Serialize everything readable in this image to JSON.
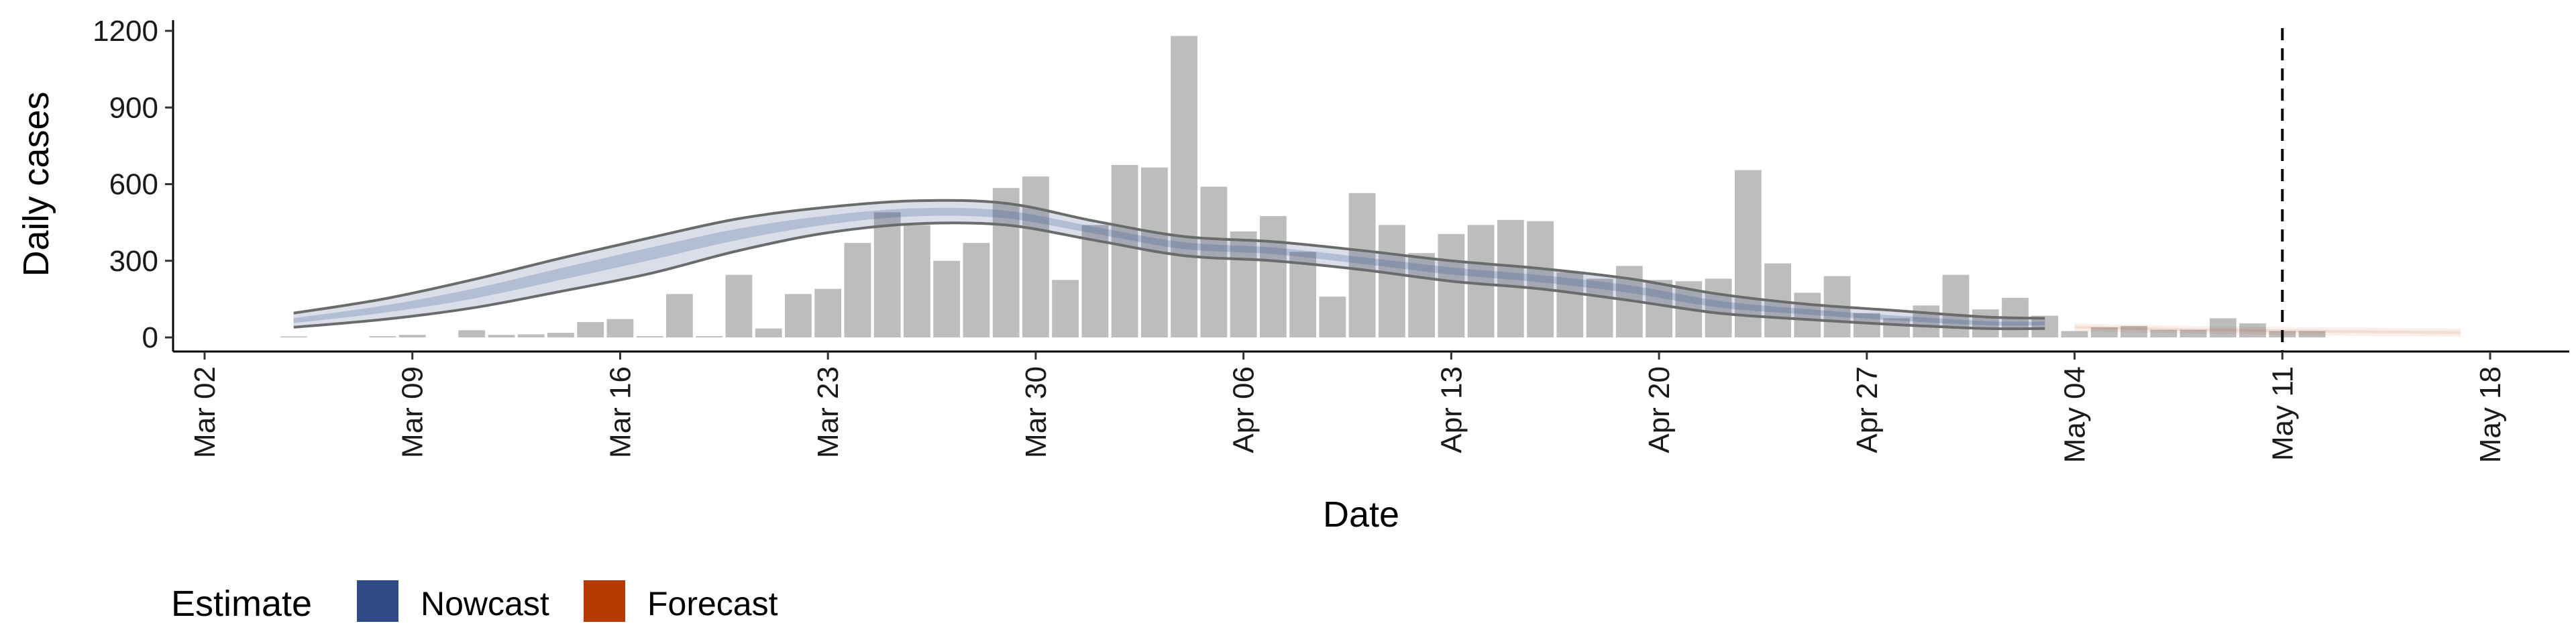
{
  "chart_data": {
    "type": "bar",
    "xlabel": "Date",
    "ylabel": "Daily cases",
    "ylim": [
      0,
      1200
    ],
    "yticks": [
      0,
      300,
      600,
      900,
      1200
    ],
    "xticks": [
      "Mar 02",
      "Mar 09",
      "Mar 16",
      "Mar 23",
      "Mar 30",
      "Apr 06",
      "Apr 13",
      "Apr 20",
      "Apr 27",
      "May 04",
      "May 11",
      "May 18"
    ],
    "x_range": [
      "2020-02-29",
      "2020-05-20"
    ],
    "grid": false,
    "reference_line": {
      "date": "2020-05-11",
      "style": "dashed"
    },
    "bars": {
      "start_date": "2020-03-05",
      "values": [
        2,
        0,
        0,
        5,
        10,
        0,
        28,
        10,
        12,
        18,
        60,
        72,
        5,
        170,
        5,
        245,
        35,
        170,
        190,
        370,
        490,
        440,
        300,
        370,
        585,
        630,
        225,
        440,
        675,
        665,
        1180,
        590,
        415,
        475,
        335,
        160,
        565,
        440,
        330,
        405,
        440,
        460,
        455,
        255,
        230,
        280,
        225,
        220,
        230,
        655,
        290,
        175,
        240,
        95,
        75,
        125,
        245,
        110,
        155,
        85,
        25,
        40,
        45,
        30,
        30,
        75,
        55,
        25,
        25
      ]
    },
    "series": [
      {
        "name": "Nowcast",
        "color": "#2e4a87",
        "dates": [
          "2020-03-05",
          "2020-03-08",
          "2020-03-11",
          "2020-03-14",
          "2020-03-17",
          "2020-03-20",
          "2020-03-23",
          "2020-03-26",
          "2020-03-29",
          "2020-04-01",
          "2020-04-04",
          "2020-04-07",
          "2020-04-10",
          "2020-04-13",
          "2020-04-16",
          "2020-04-19",
          "2020-04-22",
          "2020-04-25",
          "2020-04-28",
          "2020-05-01",
          "2020-05-03"
        ],
        "median": [
          65,
          110,
          170,
          250,
          330,
          405,
          460,
          490,
          480,
          420,
          360,
          340,
          300,
          260,
          230,
          190,
          130,
          100,
          75,
          55,
          55
        ],
        "lower": [
          40,
          70,
          115,
          180,
          250,
          340,
          410,
          445,
          440,
          380,
          320,
          300,
          265,
          220,
          190,
          145,
          95,
          70,
          50,
          35,
          35
        ],
        "upper": [
          95,
          150,
          225,
          310,
          390,
          465,
          510,
          535,
          525,
          455,
          395,
          375,
          340,
          300,
          270,
          230,
          170,
          130,
          105,
          80,
          75
        ]
      },
      {
        "name": "Forecast",
        "color": "#b33a00",
        "dates": [
          "2020-05-04",
          "2020-05-08",
          "2020-05-12",
          "2020-05-17"
        ],
        "median": [
          40,
          30,
          25,
          18
        ],
        "lower": [
          25,
          15,
          8,
          2
        ],
        "upper": [
          55,
          45,
          40,
          35
        ]
      }
    ],
    "legend": {
      "title": "Estimate",
      "position": "bottom-left",
      "entries": [
        {
          "label": "Nowcast",
          "color": "#2e4a87"
        },
        {
          "label": "Forecast",
          "color": "#b33a00"
        }
      ]
    },
    "bar_color": "#bdbdbd"
  }
}
